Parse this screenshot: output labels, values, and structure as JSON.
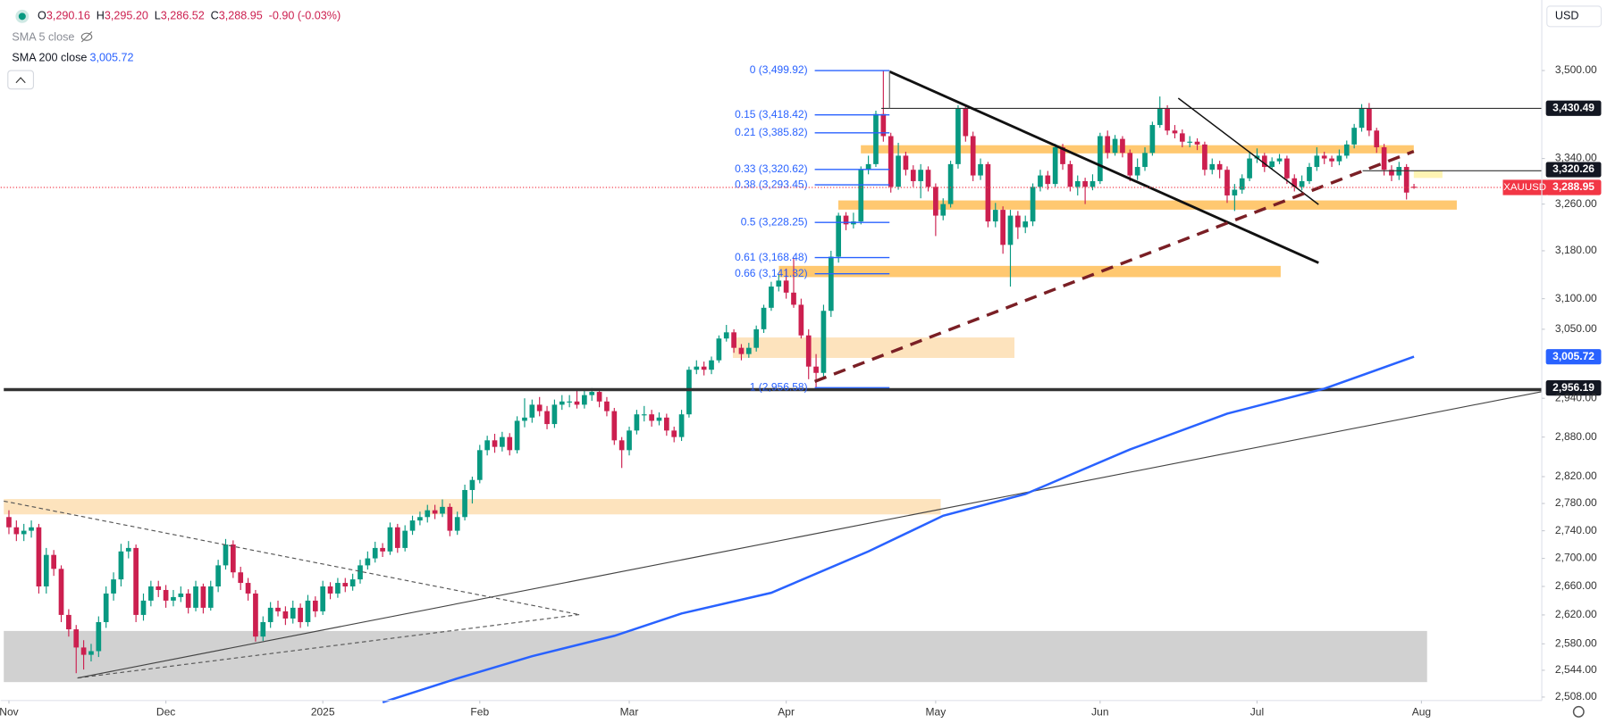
{
  "header": {
    "symbol_ohlc": [
      {
        "key": "O",
        "value": "3,290.16"
      },
      {
        "key": "H",
        "value": "3,295.20"
      },
      {
        "key": "L",
        "value": "3,286.52"
      },
      {
        "key": "C",
        "value": "3,288.95"
      }
    ],
    "change": "-0.90 (-0.03%)",
    "currency": "USD"
  },
  "chart_data": {
    "type": "candlestick",
    "up_color": "#089981",
    "down_color": "#cc1f4f",
    "log_scale": true,
    "grid": false,
    "ylim": [
      2503.4,
      3633.8
    ],
    "yticks": [
      {
        "value": 3500,
        "label": "3,500.00"
      },
      {
        "value": 3340,
        "label": "3,340.00"
      },
      {
        "value": 3260,
        "label": "3,260.00"
      },
      {
        "value": 3180,
        "label": "3,180.00"
      },
      {
        "value": 3100,
        "label": "3,100.00"
      },
      {
        "value": 3050,
        "label": "3,050.00"
      },
      {
        "value": 2940,
        "label": "2,940.00"
      },
      {
        "value": 2880,
        "label": "2,880.00"
      },
      {
        "value": 2820,
        "label": "2,820.00"
      },
      {
        "value": 2780,
        "label": "2,780.00"
      },
      {
        "value": 2740,
        "label": "2,740.00"
      },
      {
        "value": 2700,
        "label": "2,700.00"
      },
      {
        "value": 2660,
        "label": "2,660.00"
      },
      {
        "value": 2620,
        "label": "2,620.00"
      },
      {
        "value": 2580,
        "label": "2,580.00"
      },
      {
        "value": 2544,
        "label": "2,544.00"
      },
      {
        "value": 2508,
        "label": "2,508.00"
      }
    ],
    "xlim": [
      -1.1,
      205.1
    ],
    "xticks": [
      {
        "value": 0,
        "label": "Nov"
      },
      {
        "value": 21,
        "label": "Dec"
      },
      {
        "value": 42,
        "label": "2025"
      },
      {
        "value": 63,
        "label": "Feb"
      },
      {
        "value": 83,
        "label": "Mar"
      },
      {
        "value": 104,
        "label": "Apr"
      },
      {
        "value": 124,
        "label": "May"
      },
      {
        "value": 146,
        "label": "Jun"
      },
      {
        "value": 167,
        "label": "Jul"
      },
      {
        "value": 189,
        "label": "Aug"
      }
    ],
    "candles": [
      [
        2760,
        2770,
        2735,
        2745
      ],
      [
        2745,
        2755,
        2725,
        2735
      ],
      [
        2735,
        2750,
        2725,
        2740
      ],
      [
        2740,
        2755,
        2730,
        2745
      ],
      [
        2745,
        2750,
        2650,
        2660
      ],
      [
        2660,
        2715,
        2650,
        2705
      ],
      [
        2705,
        2712,
        2675,
        2685
      ],
      [
        2685,
        2690,
        2610,
        2620
      ],
      [
        2620,
        2628,
        2590,
        2600
      ],
      [
        2600,
        2606,
        2540,
        2575
      ],
      [
        2575,
        2585,
        2545,
        2565
      ],
      [
        2565,
        2580,
        2556,
        2570
      ],
      [
        2570,
        2618,
        2562,
        2610
      ],
      [
        2610,
        2660,
        2602,
        2650
      ],
      [
        2650,
        2680,
        2640,
        2670
      ],
      [
        2670,
        2721,
        2660,
        2710
      ],
      [
        2710,
        2725,
        2700,
        2715
      ],
      [
        2715,
        2720,
        2610,
        2620
      ],
      [
        2620,
        2650,
        2612,
        2640
      ],
      [
        2640,
        2668,
        2632,
        2660
      ],
      [
        2660,
        2668,
        2645,
        2655
      ],
      [
        2655,
        2662,
        2630,
        2640
      ],
      [
        2640,
        2655,
        2632,
        2645
      ],
      [
        2645,
        2660,
        2638,
        2650
      ],
      [
        2650,
        2656,
        2622,
        2630
      ],
      [
        2630,
        2668,
        2625,
        2660
      ],
      [
        2660,
        2664,
        2622,
        2630
      ],
      [
        2630,
        2668,
        2626,
        2660
      ],
      [
        2660,
        2698,
        2652,
        2690
      ],
      [
        2690,
        2728,
        2684,
        2720
      ],
      [
        2720,
        2726,
        2672,
        2680
      ],
      [
        2680,
        2688,
        2655,
        2665
      ],
      [
        2665,
        2672,
        2640,
        2650
      ],
      [
        2650,
        2655,
        2583,
        2590
      ],
      [
        2590,
        2618,
        2584,
        2610
      ],
      [
        2610,
        2638,
        2602,
        2630
      ],
      [
        2630,
        2640,
        2618,
        2625
      ],
      [
        2625,
        2632,
        2606,
        2615
      ],
      [
        2615,
        2640,
        2608,
        2630
      ],
      [
        2630,
        2636,
        2602,
        2610
      ],
      [
        2610,
        2648,
        2604,
        2640
      ],
      [
        2640,
        2646,
        2617,
        2625
      ],
      [
        2625,
        2668,
        2620,
        2660
      ],
      [
        2660,
        2666,
        2642,
        2650
      ],
      [
        2650,
        2672,
        2644,
        2665
      ],
      [
        2665,
        2672,
        2652,
        2660
      ],
      [
        2660,
        2678,
        2654,
        2670
      ],
      [
        2670,
        2698,
        2664,
        2690
      ],
      [
        2690,
        2710,
        2684,
        2700
      ],
      [
        2700,
        2724,
        2694,
        2715
      ],
      [
        2715,
        2722,
        2702,
        2710
      ],
      [
        2710,
        2752,
        2705,
        2745
      ],
      [
        2745,
        2750,
        2708,
        2715
      ],
      [
        2715,
        2748,
        2710,
        2740
      ],
      [
        2740,
        2762,
        2734,
        2755
      ],
      [
        2755,
        2768,
        2748,
        2760
      ],
      [
        2760,
        2778,
        2752,
        2770
      ],
      [
        2770,
        2778,
        2757,
        2765
      ],
      [
        2765,
        2786,
        2760,
        2775
      ],
      [
        2775,
        2780,
        2732,
        2740
      ],
      [
        2740,
        2768,
        2734,
        2760
      ],
      [
        2760,
        2808,
        2755,
        2800
      ],
      [
        2800,
        2820,
        2780,
        2815
      ],
      [
        2815,
        2868,
        2810,
        2860
      ],
      [
        2860,
        2882,
        2852,
        2875
      ],
      [
        2875,
        2885,
        2856,
        2865
      ],
      [
        2865,
        2888,
        2858,
        2880
      ],
      [
        2880,
        2886,
        2852,
        2860
      ],
      [
        2860,
        2912,
        2855,
        2905
      ],
      [
        2905,
        2940,
        2895,
        2910
      ],
      [
        2910,
        2938,
        2902,
        2930
      ],
      [
        2930,
        2942,
        2912,
        2920
      ],
      [
        2920,
        2928,
        2892,
        2900
      ],
      [
        2900,
        2938,
        2894,
        2930
      ],
      [
        2930,
        2945,
        2922,
        2935
      ],
      [
        2935,
        2945,
        2926,
        2935
      ],
      [
        2935,
        2954,
        2924,
        2930
      ],
      [
        2930,
        2954,
        2924,
        2945
      ],
      [
        2945,
        2956,
        2936,
        2950
      ],
      [
        2950,
        2955,
        2926,
        2935
      ],
      [
        2935,
        2942,
        2912,
        2920
      ],
      [
        2920,
        2925,
        2868,
        2875
      ],
      [
        2875,
        2880,
        2833,
        2860
      ],
      [
        2860,
        2896,
        2852,
        2890
      ],
      [
        2890,
        2922,
        2884,
        2915
      ],
      [
        2915,
        2928,
        2904,
        2915
      ],
      [
        2915,
        2922,
        2896,
        2905
      ],
      [
        2905,
        2918,
        2898,
        2910
      ],
      [
        2910,
        2916,
        2882,
        2890
      ],
      [
        2890,
        2896,
        2872,
        2880
      ],
      [
        2880,
        2922,
        2874,
        2915
      ],
      [
        2915,
        2990,
        2910,
        2985
      ],
      [
        2985,
        3000,
        2978,
        2990
      ],
      [
        2990,
        2998,
        2976,
        2985
      ],
      [
        2985,
        3006,
        2978,
        3000
      ],
      [
        3000,
        3040,
        2996,
        3035
      ],
      [
        3035,
        3057,
        3030,
        3045
      ],
      [
        3045,
        3050,
        3012,
        3020
      ],
      [
        3020,
        3026,
        3000,
        3010
      ],
      [
        3010,
        3028,
        3004,
        3020
      ],
      [
        3020,
        3056,
        3014,
        3050
      ],
      [
        3050,
        3090,
        3044,
        3085
      ],
      [
        3085,
        3128,
        3080,
        3120
      ],
      [
        3120,
        3140,
        3112,
        3130
      ],
      [
        3130,
        3150,
        3100,
        3110
      ],
      [
        3110,
        3168,
        3085,
        3090
      ],
      [
        3090,
        3100,
        3035,
        3040
      ],
      [
        3040,
        3050,
        2970,
        2990
      ],
      [
        2990,
        3010,
        2957,
        2980
      ],
      [
        2980,
        3090,
        2972,
        3080
      ],
      [
        3080,
        3180,
        3070,
        3170
      ],
      [
        3170,
        3245,
        3160,
        3240
      ],
      [
        3240,
        3246,
        3215,
        3225
      ],
      [
        3225,
        3245,
        3218,
        3230
      ],
      [
        3230,
        3326,
        3225,
        3320
      ],
      [
        3320,
        3345,
        3312,
        3330
      ],
      [
        3330,
        3426,
        3325,
        3420
      ],
      [
        3420,
        3500,
        3370,
        3380
      ],
      [
        3380,
        3386,
        3280,
        3290
      ],
      [
        3290,
        3368,
        3285,
        3345
      ],
      [
        3345,
        3352,
        3310,
        3320
      ],
      [
        3320,
        3328,
        3290,
        3300
      ],
      [
        3300,
        3330,
        3270,
        3320
      ],
      [
        3320,
        3326,
        3282,
        3290
      ],
      [
        3290,
        3296,
        3205,
        3240
      ],
      [
        3240,
        3270,
        3232,
        3260
      ],
      [
        3260,
        3336,
        3254,
        3330
      ],
      [
        3330,
        3436,
        3322,
        3430
      ],
      [
        3430,
        3436,
        3370,
        3380
      ],
      [
        3380,
        3388,
        3300,
        3310
      ],
      [
        3310,
        3340,
        3302,
        3330
      ],
      [
        3330,
        3334,
        3220,
        3230
      ],
      [
        3230,
        3262,
        3220,
        3250
      ],
      [
        3250,
        3256,
        3175,
        3190
      ],
      [
        3190,
        3250,
        3120,
        3240
      ],
      [
        3240,
        3248,
        3200,
        3220
      ],
      [
        3220,
        3240,
        3210,
        3230
      ],
      [
        3230,
        3296,
        3222,
        3290
      ],
      [
        3290,
        3320,
        3282,
        3310
      ],
      [
        3310,
        3318,
        3285,
        3295
      ],
      [
        3295,
        3366,
        3290,
        3360
      ],
      [
        3360,
        3366,
        3320,
        3330
      ],
      [
        3330,
        3336,
        3282,
        3290
      ],
      [
        3290,
        3310,
        3275,
        3300
      ],
      [
        3300,
        3306,
        3260,
        3290
      ],
      [
        3290,
        3312,
        3284,
        3300
      ],
      [
        3300,
        3386,
        3295,
        3380
      ],
      [
        3380,
        3390,
        3340,
        3350
      ],
      [
        3350,
        3382,
        3345,
        3375
      ],
      [
        3375,
        3380,
        3342,
        3350
      ],
      [
        3350,
        3356,
        3300,
        3310
      ],
      [
        3310,
        3340,
        3302,
        3325
      ],
      [
        3325,
        3360,
        3318,
        3350
      ],
      [
        3350,
        3406,
        3345,
        3400
      ],
      [
        3400,
        3452,
        3395,
        3430
      ],
      [
        3430,
        3436,
        3382,
        3390
      ],
      [
        3390,
        3400,
        3376,
        3385
      ],
      [
        3385,
        3392,
        3360,
        3370
      ],
      [
        3370,
        3380,
        3360,
        3370
      ],
      [
        3370,
        3376,
        3355,
        3365
      ],
      [
        3365,
        3370,
        3310,
        3320
      ],
      [
        3320,
        3340,
        3312,
        3330
      ],
      [
        3330,
        3336,
        3305,
        3320
      ],
      [
        3320,
        3326,
        3262,
        3275
      ],
      [
        3275,
        3295,
        3248,
        3285
      ],
      [
        3285,
        3312,
        3278,
        3305
      ],
      [
        3305,
        3350,
        3300,
        3340
      ],
      [
        3340,
        3358,
        3332,
        3345
      ],
      [
        3345,
        3350,
        3316,
        3325
      ],
      [
        3325,
        3342,
        3320,
        3335
      ],
      [
        3335,
        3348,
        3330,
        3340
      ],
      [
        3340,
        3345,
        3295,
        3305
      ],
      [
        3305,
        3312,
        3282,
        3290
      ],
      [
        3290,
        3310,
        3284,
        3300
      ],
      [
        3300,
        3332,
        3295,
        3325
      ],
      [
        3325,
        3360,
        3318,
        3345
      ],
      [
        3345,
        3352,
        3330,
        3340
      ],
      [
        3340,
        3345,
        3325,
        3335
      ],
      [
        3335,
        3356,
        3328,
        3345
      ],
      [
        3345,
        3372,
        3340,
        3365
      ],
      [
        3365,
        3402,
        3358,
        3395
      ],
      [
        3395,
        3438,
        3388,
        3430
      ],
      [
        3430,
        3440,
        3380,
        3390
      ],
      [
        3390,
        3395,
        3350,
        3360
      ],
      [
        3360,
        3366,
        3310,
        3320
      ],
      [
        3320,
        3328,
        3300,
        3310
      ],
      [
        3310,
        3334,
        3302,
        3325
      ],
      [
        3325,
        3330,
        3268,
        3280
      ],
      [
        3290.16,
        3295.2,
        3286.52,
        3288.95
      ]
    ],
    "indicators": [
      {
        "name": "SMA 5 close"
      },
      {
        "name": "SMA 200 close",
        "value_label": "3,005.72",
        "color": "#2962ff",
        "x": [
          50,
          60,
          70,
          81,
          90,
          102,
          115,
          125,
          136,
          150,
          163,
          176,
          188
        ],
        "values": [
          2501,
          2533,
          2563,
          2591,
          2622,
          2651,
          2710,
          2762,
          2794,
          2861,
          2916,
          2955,
          3005.72
        ]
      }
    ],
    "fib_levels": [
      {
        "label": "0 (3,499.92)",
        "value": 3499.92
      },
      {
        "label": "0.15 (3,418.42)",
        "value": 3418.42
      },
      {
        "label": "0.21 (3,385.82)",
        "value": 3385.82
      },
      {
        "label": "0.33 (3,320.62)",
        "value": 3320.62
      },
      {
        "label": "0.38 (3,293.45)",
        "value": 3293.45
      },
      {
        "label": "0.5 (3,228.25)",
        "value": 3228.25
      },
      {
        "label": "0.61 (3,168.48)",
        "value": 3168.48
      },
      {
        "label": "0.66 (3,141.32)",
        "value": 3141.32
      },
      {
        "label": "1 (2,956.58)",
        "value": 2956.58
      }
    ],
    "fib_color": "#2962ff",
    "price_tags": [
      {
        "label": "3,430.49",
        "value": 3430.49,
        "color": "#131722"
      },
      {
        "label": "3,320.26",
        "value": 3320.26,
        "color": "#131722"
      },
      {
        "symbol": "XAUUSD",
        "label": "3,288.95",
        "value": 3288.95,
        "color": "#f23645"
      },
      {
        "label": "3,005.72",
        "value": 3005.72,
        "color": "#2962ff"
      },
      {
        "label": "2,956.19",
        "value": 2956.19,
        "color": "#131722"
      }
    ]
  }
}
